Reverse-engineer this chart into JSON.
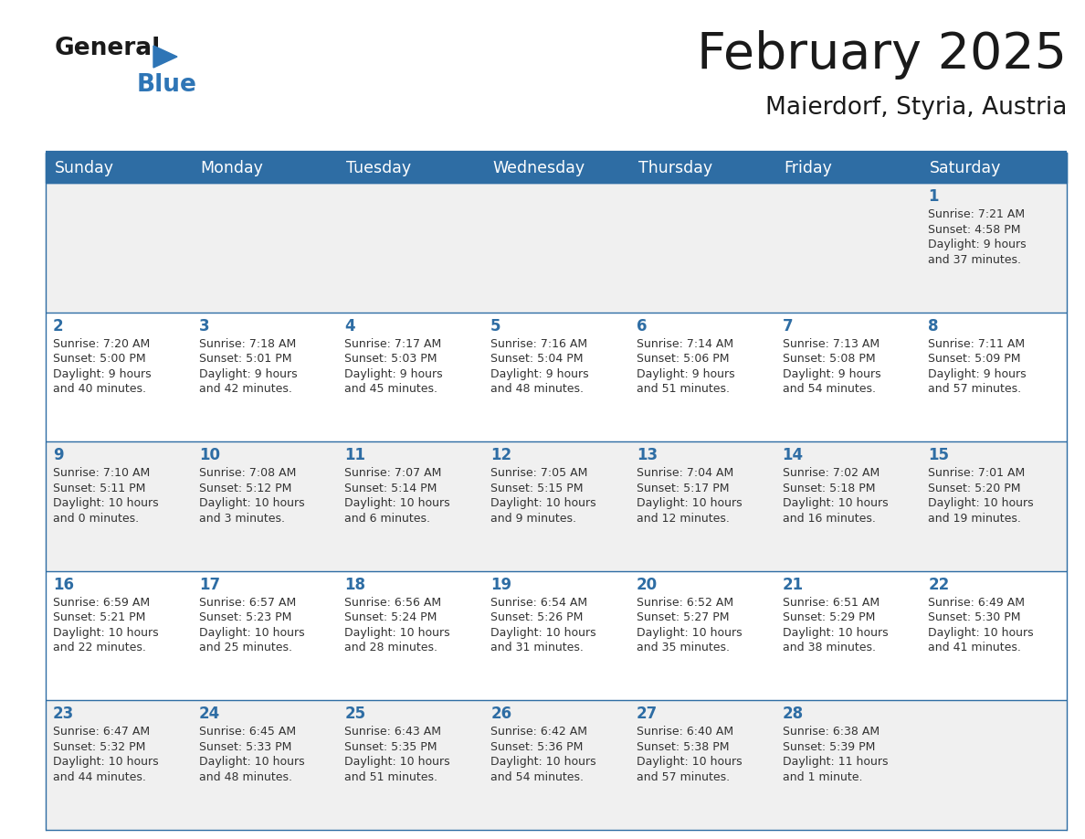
{
  "title": "February 2025",
  "subtitle": "Maierdorf, Styria, Austria",
  "header_bg": "#2E6DA4",
  "header_text_color": "#FFFFFF",
  "cell_bg_odd": "#F0F0F0",
  "cell_bg_even": "#FFFFFF",
  "days_of_week": [
    "Sunday",
    "Monday",
    "Tuesday",
    "Wednesday",
    "Thursday",
    "Friday",
    "Saturday"
  ],
  "text_color": "#333333",
  "day_num_color": "#2E6DA4",
  "line_color": "#2E6DA4",
  "logo_general_color": "#1a1a1a",
  "logo_blue_color": "#2E75B6",
  "weeks": [
    [
      {
        "day": null,
        "info": ""
      },
      {
        "day": null,
        "info": ""
      },
      {
        "day": null,
        "info": ""
      },
      {
        "day": null,
        "info": ""
      },
      {
        "day": null,
        "info": ""
      },
      {
        "day": null,
        "info": ""
      },
      {
        "day": 1,
        "info": "Sunrise: 7:21 AM\nSunset: 4:58 PM\nDaylight: 9 hours\nand 37 minutes."
      }
    ],
    [
      {
        "day": 2,
        "info": "Sunrise: 7:20 AM\nSunset: 5:00 PM\nDaylight: 9 hours\nand 40 minutes."
      },
      {
        "day": 3,
        "info": "Sunrise: 7:18 AM\nSunset: 5:01 PM\nDaylight: 9 hours\nand 42 minutes."
      },
      {
        "day": 4,
        "info": "Sunrise: 7:17 AM\nSunset: 5:03 PM\nDaylight: 9 hours\nand 45 minutes."
      },
      {
        "day": 5,
        "info": "Sunrise: 7:16 AM\nSunset: 5:04 PM\nDaylight: 9 hours\nand 48 minutes."
      },
      {
        "day": 6,
        "info": "Sunrise: 7:14 AM\nSunset: 5:06 PM\nDaylight: 9 hours\nand 51 minutes."
      },
      {
        "day": 7,
        "info": "Sunrise: 7:13 AM\nSunset: 5:08 PM\nDaylight: 9 hours\nand 54 minutes."
      },
      {
        "day": 8,
        "info": "Sunrise: 7:11 AM\nSunset: 5:09 PM\nDaylight: 9 hours\nand 57 minutes."
      }
    ],
    [
      {
        "day": 9,
        "info": "Sunrise: 7:10 AM\nSunset: 5:11 PM\nDaylight: 10 hours\nand 0 minutes."
      },
      {
        "day": 10,
        "info": "Sunrise: 7:08 AM\nSunset: 5:12 PM\nDaylight: 10 hours\nand 3 minutes."
      },
      {
        "day": 11,
        "info": "Sunrise: 7:07 AM\nSunset: 5:14 PM\nDaylight: 10 hours\nand 6 minutes."
      },
      {
        "day": 12,
        "info": "Sunrise: 7:05 AM\nSunset: 5:15 PM\nDaylight: 10 hours\nand 9 minutes."
      },
      {
        "day": 13,
        "info": "Sunrise: 7:04 AM\nSunset: 5:17 PM\nDaylight: 10 hours\nand 12 minutes."
      },
      {
        "day": 14,
        "info": "Sunrise: 7:02 AM\nSunset: 5:18 PM\nDaylight: 10 hours\nand 16 minutes."
      },
      {
        "day": 15,
        "info": "Sunrise: 7:01 AM\nSunset: 5:20 PM\nDaylight: 10 hours\nand 19 minutes."
      }
    ],
    [
      {
        "day": 16,
        "info": "Sunrise: 6:59 AM\nSunset: 5:21 PM\nDaylight: 10 hours\nand 22 minutes."
      },
      {
        "day": 17,
        "info": "Sunrise: 6:57 AM\nSunset: 5:23 PM\nDaylight: 10 hours\nand 25 minutes."
      },
      {
        "day": 18,
        "info": "Sunrise: 6:56 AM\nSunset: 5:24 PM\nDaylight: 10 hours\nand 28 minutes."
      },
      {
        "day": 19,
        "info": "Sunrise: 6:54 AM\nSunset: 5:26 PM\nDaylight: 10 hours\nand 31 minutes."
      },
      {
        "day": 20,
        "info": "Sunrise: 6:52 AM\nSunset: 5:27 PM\nDaylight: 10 hours\nand 35 minutes."
      },
      {
        "day": 21,
        "info": "Sunrise: 6:51 AM\nSunset: 5:29 PM\nDaylight: 10 hours\nand 38 minutes."
      },
      {
        "day": 22,
        "info": "Sunrise: 6:49 AM\nSunset: 5:30 PM\nDaylight: 10 hours\nand 41 minutes."
      }
    ],
    [
      {
        "day": 23,
        "info": "Sunrise: 6:47 AM\nSunset: 5:32 PM\nDaylight: 10 hours\nand 44 minutes."
      },
      {
        "day": 24,
        "info": "Sunrise: 6:45 AM\nSunset: 5:33 PM\nDaylight: 10 hours\nand 48 minutes."
      },
      {
        "day": 25,
        "info": "Sunrise: 6:43 AM\nSunset: 5:35 PM\nDaylight: 10 hours\nand 51 minutes."
      },
      {
        "day": 26,
        "info": "Sunrise: 6:42 AM\nSunset: 5:36 PM\nDaylight: 10 hours\nand 54 minutes."
      },
      {
        "day": 27,
        "info": "Sunrise: 6:40 AM\nSunset: 5:38 PM\nDaylight: 10 hours\nand 57 minutes."
      },
      {
        "day": 28,
        "info": "Sunrise: 6:38 AM\nSunset: 5:39 PM\nDaylight: 11 hours\nand 1 minute."
      },
      {
        "day": null,
        "info": ""
      }
    ]
  ],
  "figsize": [
    11.88,
    9.18
  ],
  "dpi": 100
}
